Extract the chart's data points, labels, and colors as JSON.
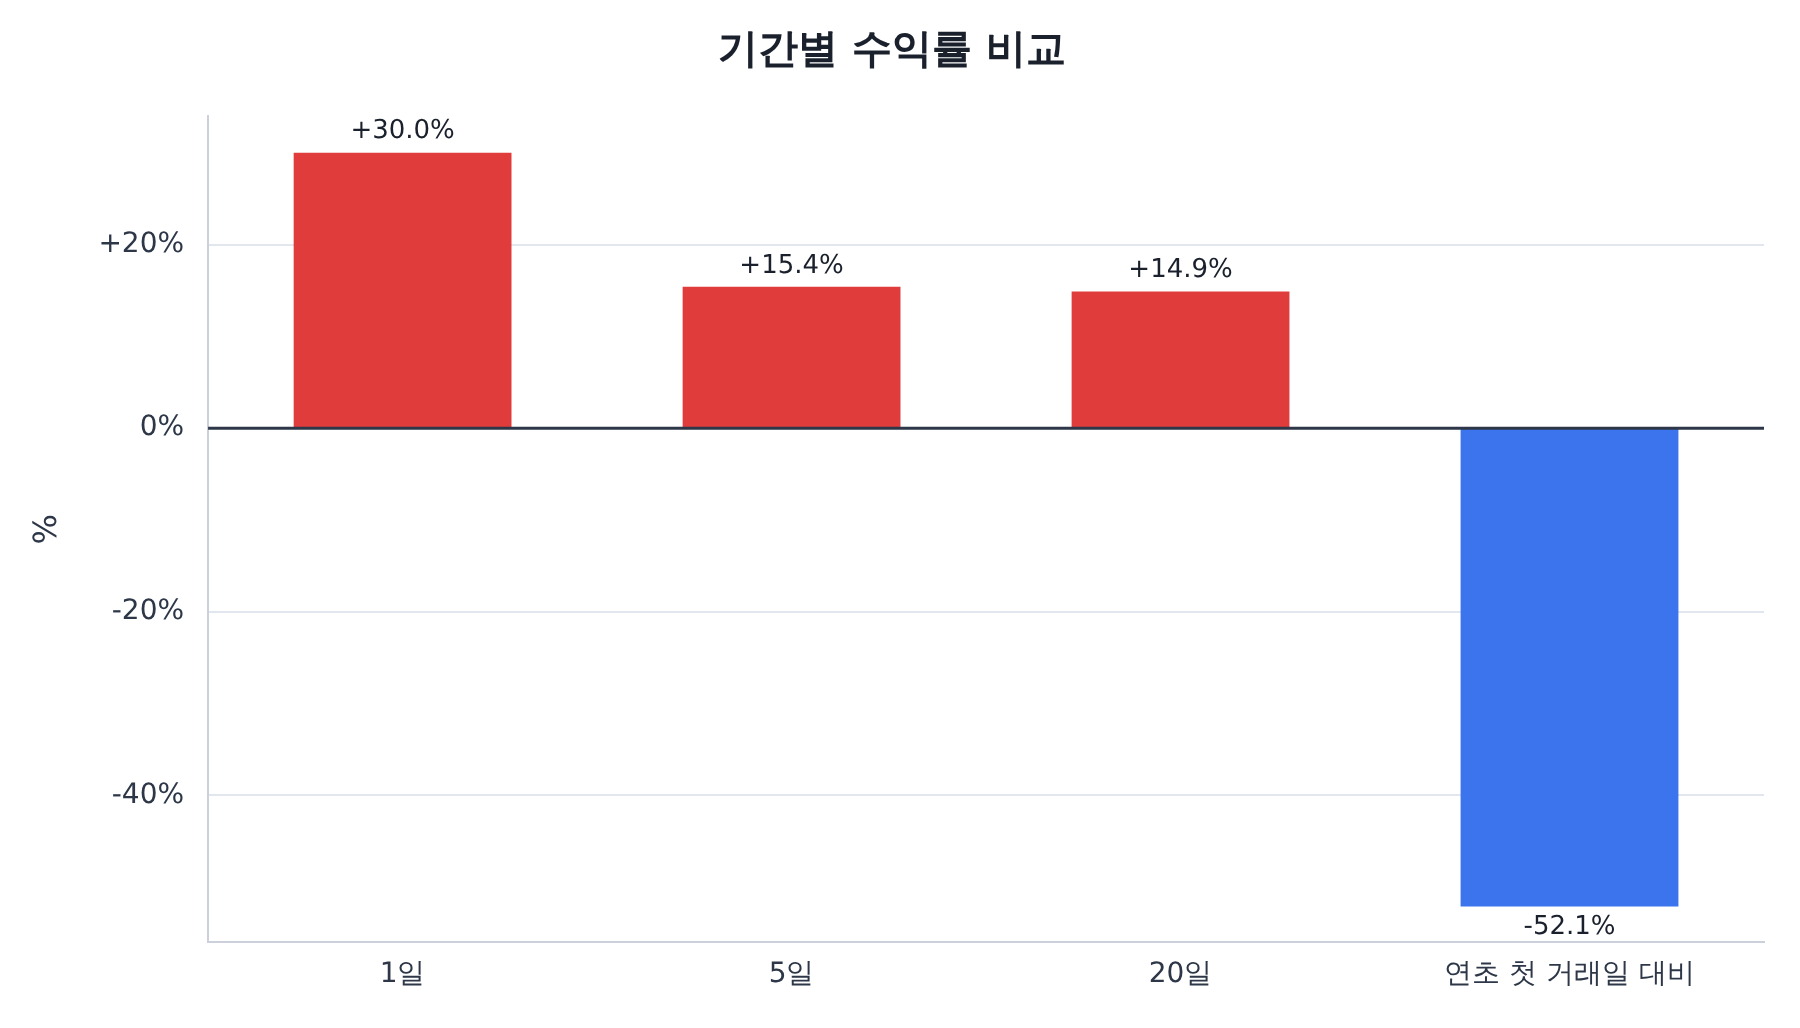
{
  "chart_data": {
    "type": "bar",
    "title": "기간별 수익률 비교",
    "ylabel": "%",
    "categories": [
      "1일",
      "5일",
      "20일",
      "연초 첫 거래일 대비"
    ],
    "values": [
      30.0,
      15.4,
      14.9,
      -52.1
    ],
    "colors": [
      "#e03c3c",
      "#e03c3c",
      "#e03c3c",
      "#3b74ec"
    ],
    "value_labels": [
      "+30.0%",
      "+15.4%",
      "+14.9%",
      "-52.1%"
    ],
    "ylim": [
      -56,
      34
    ],
    "yticks": [
      {
        "value": -40,
        "label": "-40%"
      },
      {
        "value": -20,
        "label": "-20%"
      },
      {
        "value": 0,
        "label": "0%"
      },
      {
        "value": 20,
        "label": "+20%"
      }
    ],
    "ref_lines": [
      {
        "axis": "y",
        "value": 0,
        "color": "#2d3748"
      }
    ],
    "grid": "y",
    "legend": false
  }
}
